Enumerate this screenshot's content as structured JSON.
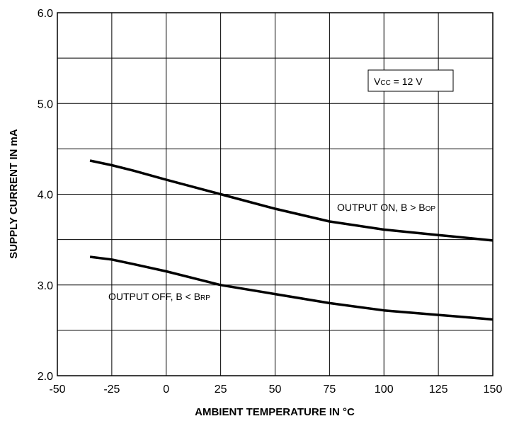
{
  "chart_data": {
    "type": "line",
    "title": "",
    "xlabel": "AMBIENT TEMPERATURE IN °C",
    "ylabel": "SUPPLY CURRENT IN mA",
    "xlim": [
      -50,
      150
    ],
    "ylim": [
      2.0,
      6.0
    ],
    "x_ticks": [
      "-50",
      "-25",
      "0",
      "25",
      "50",
      "75",
      "100",
      "125",
      "150"
    ],
    "y_ticks": [
      "2.0",
      "3.0",
      "4.0",
      "5.0",
      "6.0"
    ],
    "grid": true,
    "series": [
      {
        "label_main": "OUTPUT ON, B > B",
        "label_sub": "OP",
        "x": [
          -35,
          -25,
          -15,
          0,
          25,
          50,
          75,
          100,
          125,
          150
        ],
        "y": [
          4.37,
          4.32,
          4.26,
          4.16,
          4.0,
          3.84,
          3.7,
          3.61,
          3.55,
          3.49
        ]
      },
      {
        "label_main": "OUTPUT OFF, B < B",
        "label_sub": "RP",
        "x": [
          -35,
          -25,
          -15,
          0,
          25,
          50,
          75,
          100,
          125,
          150
        ],
        "y": [
          3.31,
          3.28,
          3.23,
          3.15,
          3.0,
          2.9,
          2.8,
          2.72,
          2.67,
          2.62
        ]
      }
    ],
    "annotation": {
      "main": "V",
      "sub": "CC",
      "rest": " = 12 V"
    },
    "colors": {
      "line": "#000000",
      "grid": "#000000",
      "background": "#ffffff"
    }
  }
}
